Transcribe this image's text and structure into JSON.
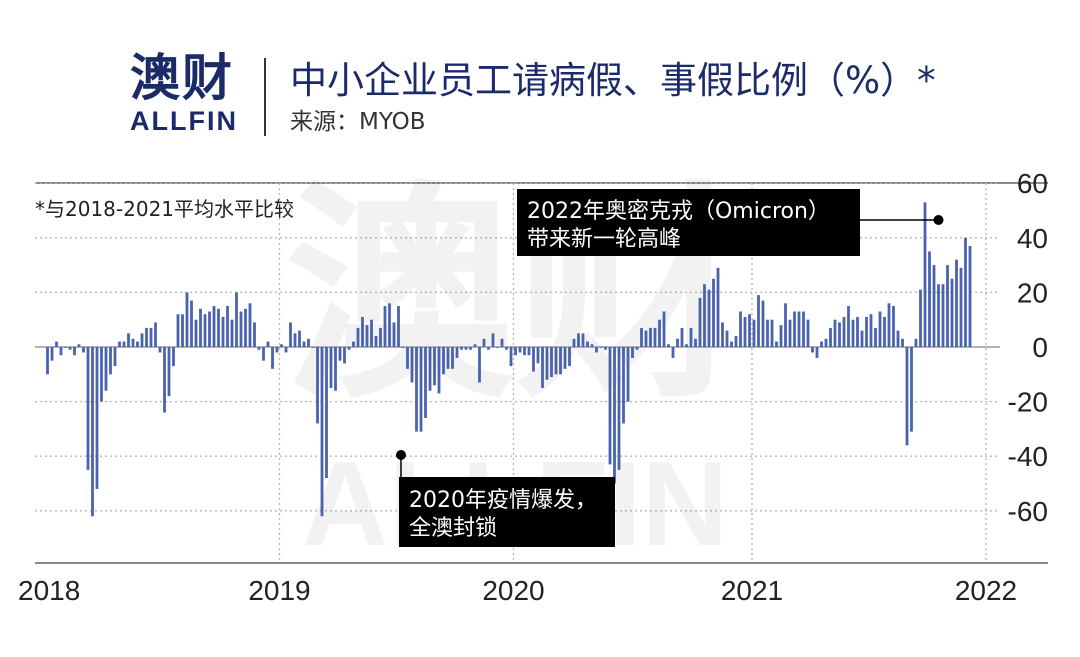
{
  "logo": {
    "cn": "澳财",
    "en": "ALLFIN"
  },
  "header": {
    "title": "中小企业员工请病假、事假比例（%）*",
    "source": "来源：MYOB"
  },
  "chart_data": {
    "type": "bar",
    "title": "中小企业员工请病假、事假比例（%）*",
    "note": "*与2018-2021平均水平比较",
    "ylim": [
      -65,
      62
    ],
    "yticks": [
      60,
      40,
      20,
      0,
      -20,
      -40,
      -60
    ],
    "ytick_labels": [
      "60",
      "40",
      "20",
      "0",
      "-20",
      "-40",
      "-60"
    ],
    "xticks": [
      {
        "label": "2018",
        "week": 0
      },
      {
        "label": "2019",
        "week": 52
      },
      {
        "label": "2020",
        "week": 104
      },
      {
        "label": "2021",
        "week": 157
      },
      {
        "label": "2022",
        "week": 209
      }
    ],
    "color": "#4a63ae",
    "values": [
      -10,
      -5,
      2,
      -3,
      0,
      -1,
      -3,
      1,
      -2,
      -45,
      -62,
      -52,
      -20,
      -16,
      -10,
      -7,
      2,
      2,
      5,
      3,
      2,
      5,
      7,
      7,
      9,
      -2,
      -24,
      -18,
      -7,
      12,
      12,
      20,
      17,
      10,
      14,
      12,
      13,
      15,
      14,
      11,
      15,
      10,
      20,
      13,
      14,
      16,
      9,
      -1,
      -5,
      2,
      -8,
      -2,
      1,
      -2,
      9,
      5,
      6,
      2,
      3,
      0,
      -28,
      -62,
      -48,
      -15,
      -16,
      -5,
      -6,
      -1,
      2,
      7,
      11,
      8,
      10,
      4,
      7,
      15,
      16,
      9,
      15,
      0,
      -8,
      -13,
      -31,
      -31,
      -26,
      -16,
      -14,
      -17,
      -10,
      -8,
      -8,
      -4,
      -1,
      -1,
      -1,
      1,
      -13,
      3,
      -1,
      5,
      0,
      3,
      -1,
      -7,
      -3,
      -2,
      -3,
      -3,
      -9,
      -6,
      -15,
      -12,
      -11,
      -10,
      -10,
      -8,
      -7,
      3,
      5,
      5,
      2,
      1,
      -2,
      0,
      -1,
      -43,
      -50,
      -45,
      -28,
      -20,
      -4,
      -1,
      7,
      6,
      7,
      7,
      10,
      13,
      1,
      -4,
      3,
      7,
      1,
      7,
      3,
      18,
      23,
      21,
      25,
      29,
      9,
      6,
      2,
      4,
      13,
      11,
      12,
      10,
      19,
      17,
      10,
      10,
      2,
      8,
      16,
      10,
      13,
      13,
      13,
      10,
      -2,
      -4,
      2,
      3,
      7,
      10,
      9,
      11,
      15,
      10,
      11,
      6,
      11,
      12,
      7,
      13,
      11,
      16,
      15,
      6,
      3,
      -36,
      -31,
      3,
      21,
      53,
      35,
      30,
      23,
      23,
      30,
      25,
      32,
      29,
      40,
      37
    ],
    "annotations": [
      {
        "text_lines": [
          "2022年奥密克戎（Omicron）",
          "带来新一轮高峰"
        ],
        "week": 198,
        "value": 52
      },
      {
        "text_lines": [
          "2020年疫情爆发，",
          "全澳封锁"
        ],
        "week": 79,
        "value": -33
      }
    ]
  }
}
